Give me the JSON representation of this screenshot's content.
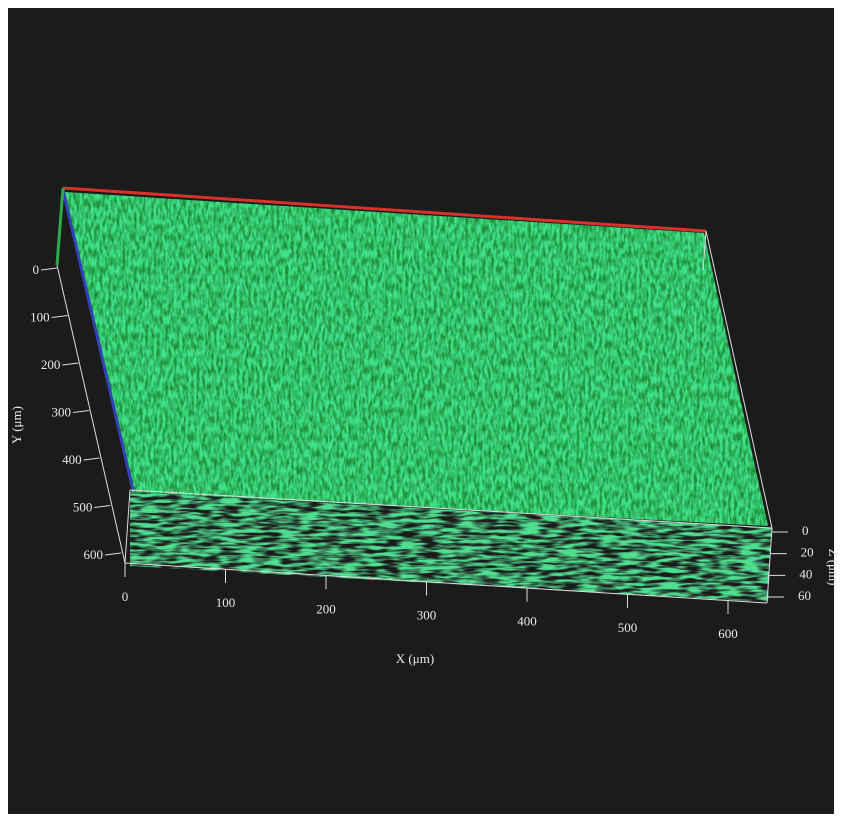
{
  "axes": {
    "x": {
      "label": "X (μm)",
      "ticks": [
        "0",
        "100",
        "200",
        "300",
        "400",
        "500",
        "600"
      ]
    },
    "y": {
      "label": "Y (μm)",
      "ticks": [
        "0",
        "100",
        "200",
        "300",
        "400",
        "500",
        "600"
      ]
    },
    "z": {
      "label": "Z (μm)",
      "ticks": [
        "0",
        "20",
        "40",
        "60"
      ]
    }
  }
}
